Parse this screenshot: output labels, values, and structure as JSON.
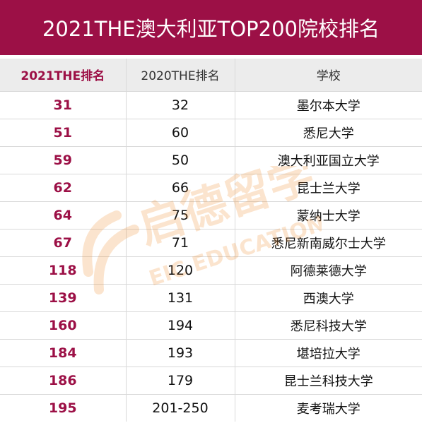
{
  "title": "2021THE澳大利亚TOP200院校排名",
  "header": {
    "col_2021": "2021THE排名",
    "col_2020": "2020THE排名",
    "col_school": "学校"
  },
  "rows": [
    {
      "rank_2021": "31",
      "rank_2020": "32",
      "school": "墨尔本大学"
    },
    {
      "rank_2021": "51",
      "rank_2020": "60",
      "school": "悉尼大学"
    },
    {
      "rank_2021": "59",
      "rank_2020": "50",
      "school": "澳大利亚国立大学"
    },
    {
      "rank_2021": "62",
      "rank_2020": "66",
      "school": "昆士兰大学"
    },
    {
      "rank_2021": "64",
      "rank_2020": "75",
      "school": "蒙纳士大学"
    },
    {
      "rank_2021": "67",
      "rank_2020": "71",
      "school": "悉尼新南威尔士大学"
    },
    {
      "rank_2021": "118",
      "rank_2020": "120",
      "school": "阿德莱德大学"
    },
    {
      "rank_2021": "139",
      "rank_2020": "131",
      "school": "西澳大学"
    },
    {
      "rank_2021": "160",
      "rank_2020": "194",
      "school": "悉尼科技大学"
    },
    {
      "rank_2021": "184",
      "rank_2020": "193",
      "school": "堪培拉大学"
    },
    {
      "rank_2021": "186",
      "rank_2020": "179",
      "school": "昆士兰科技大学"
    },
    {
      "rank_2021": "195",
      "rank_2020": "201-250",
      "school": "麦考瑞大学"
    }
  ],
  "watermark": {
    "cn": "启德留学",
    "en": "EIC EDUCATION"
  },
  "colors": {
    "accent": "#9c1046",
    "header_bg": "#ececec",
    "watermark": "#f08a24"
  }
}
